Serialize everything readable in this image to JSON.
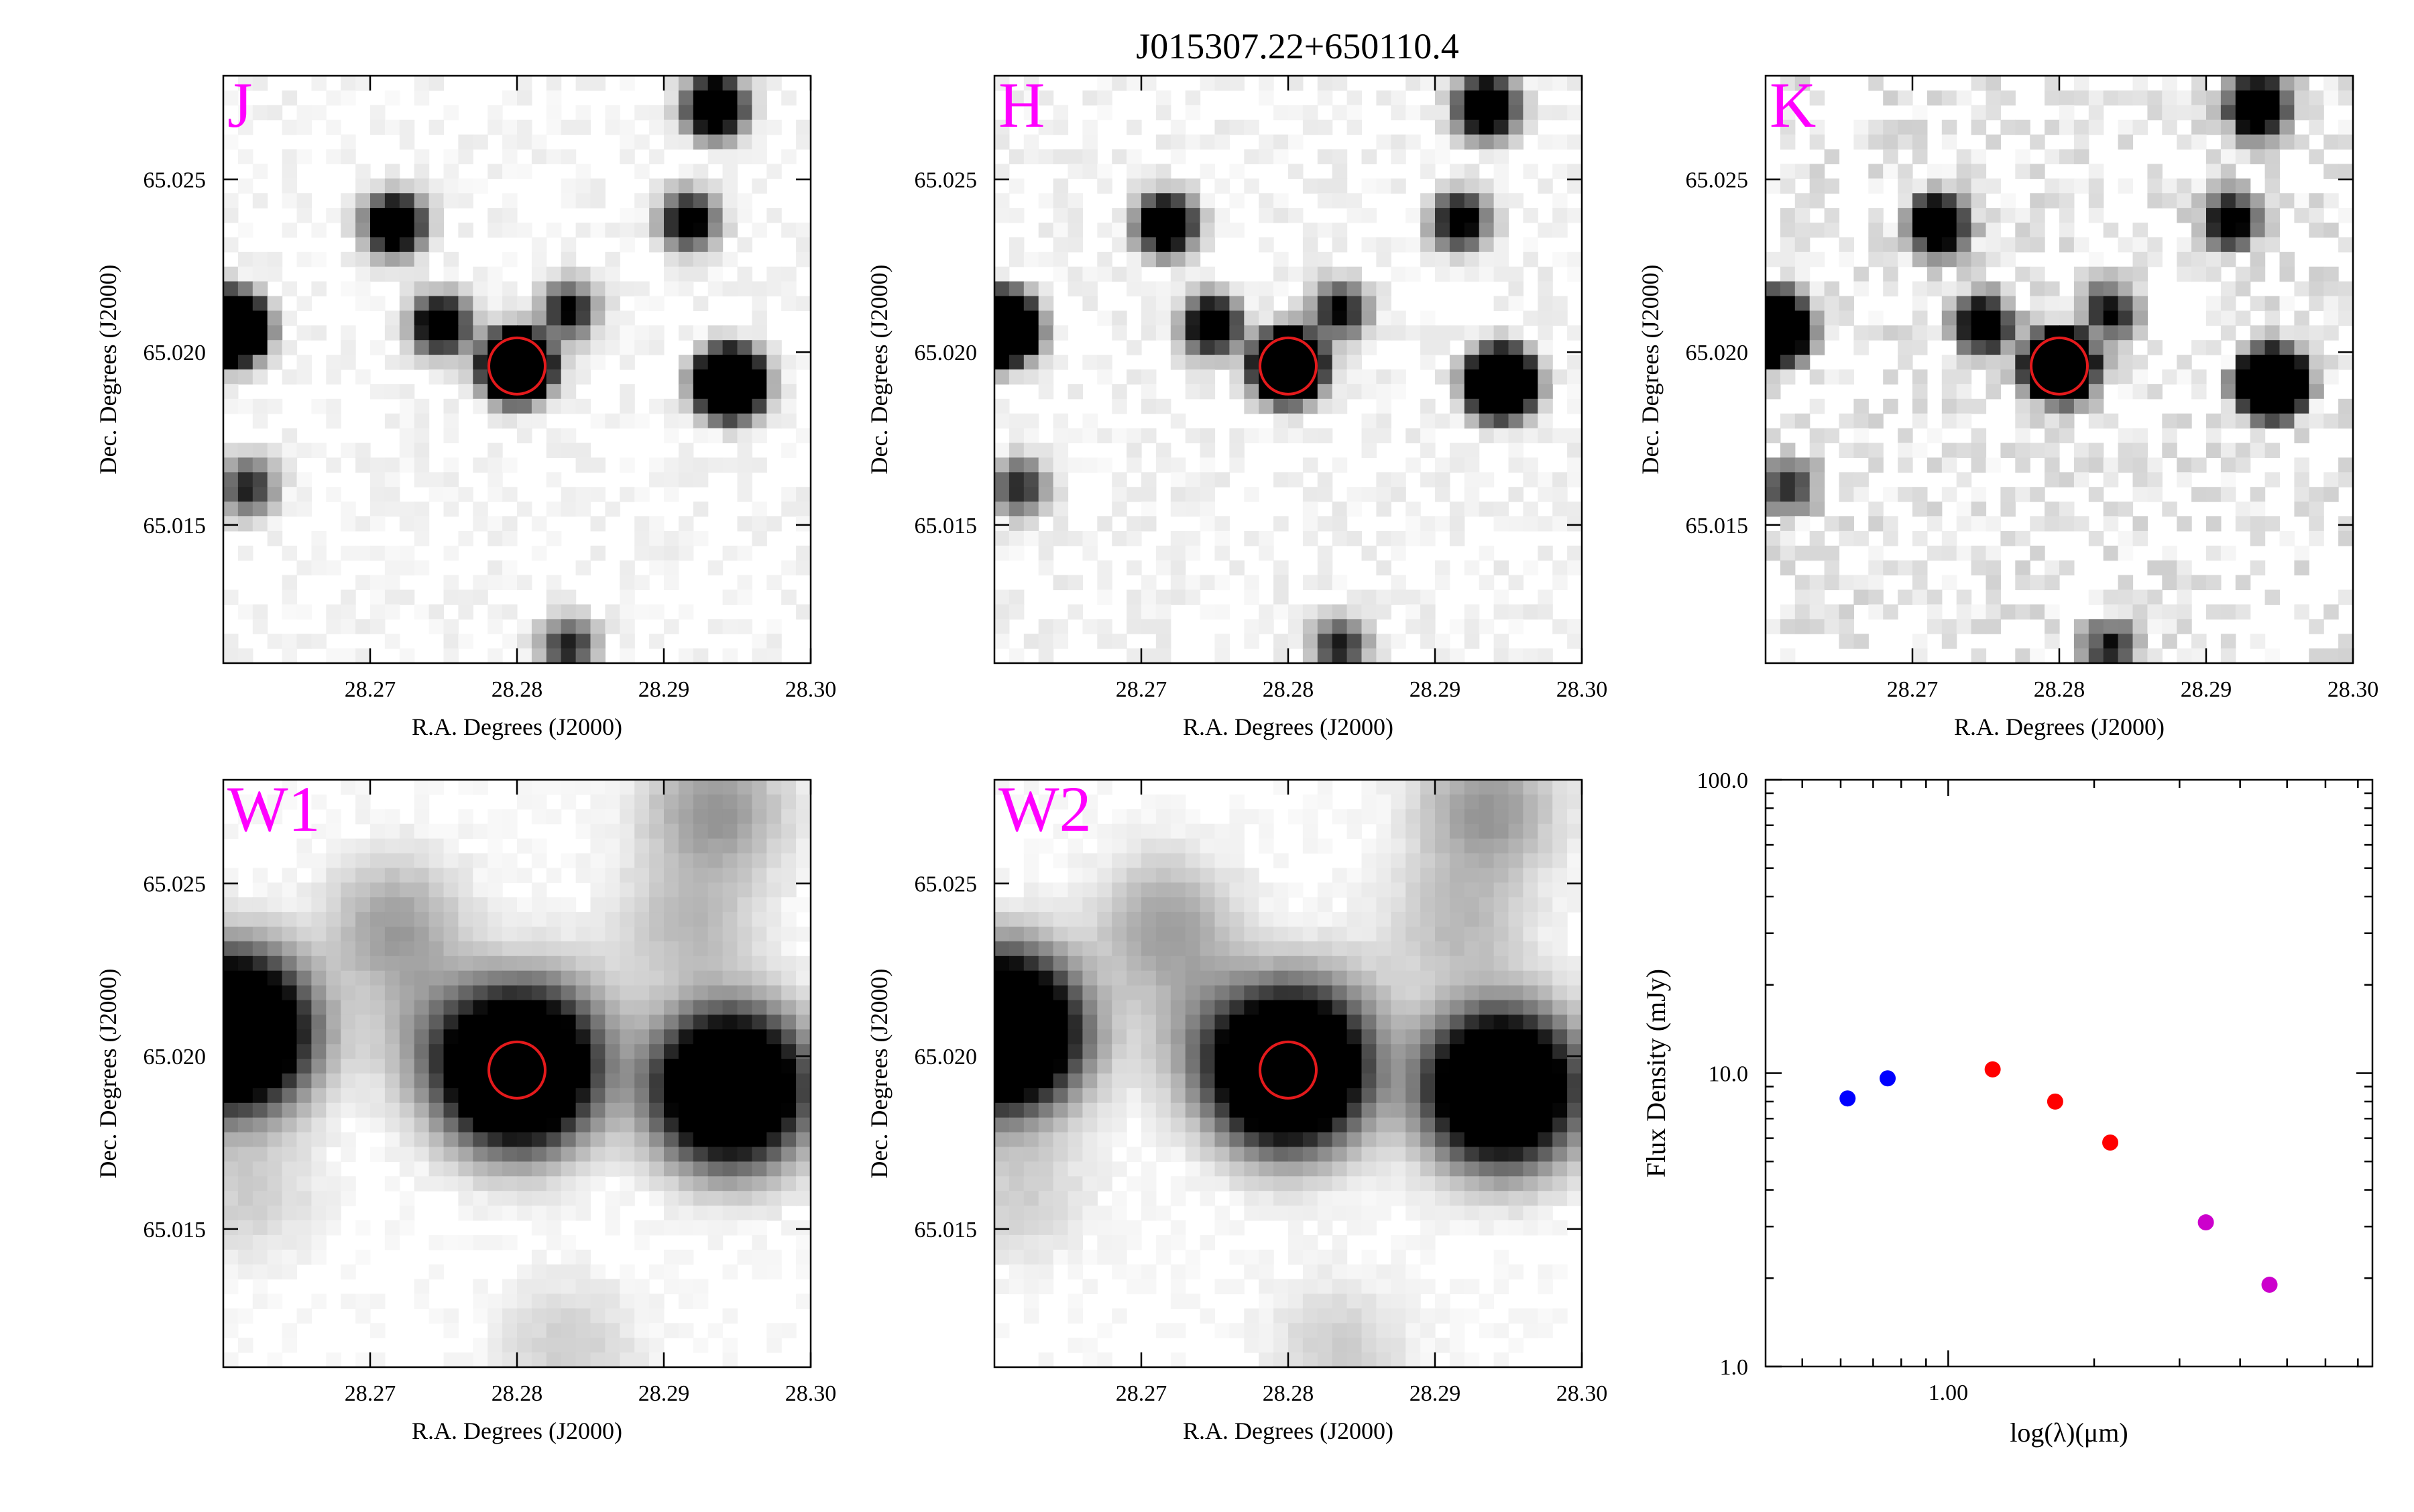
{
  "figure_title": "J015307.22+650110.4",
  "colors": {
    "band_label": "#ff00ff",
    "aperture": "#e41a1c",
    "optical_points": "#0000ff",
    "nir_points": "#ff0000",
    "wise_points": "#cc00cc"
  },
  "image_axes": {
    "xlabel": "R.A. Degrees (J2000)",
    "ylabel": "Dec. Degrees (J2000)",
    "xlim": [
      28.26,
      28.3
    ],
    "ylim": [
      65.011,
      65.028
    ],
    "xticks": [
      "28.27",
      "28.28",
      "28.29",
      "28.30"
    ],
    "yticks": [
      "65.015",
      "65.020",
      "65.025"
    ]
  },
  "panels": [
    {
      "band": "J",
      "psf": "sharp",
      "noise": 0.07
    },
    {
      "band": "H",
      "psf": "sharp",
      "noise": 0.09
    },
    {
      "band": "K",
      "psf": "sharp",
      "noise": 0.22
    },
    {
      "band": "W1",
      "psf": "broad",
      "noise": 0.03
    },
    {
      "band": "W2",
      "psf": "broad",
      "noise": 0.03
    }
  ],
  "target": {
    "ra": 28.28,
    "dec": 65.0196
  },
  "field_sources": [
    {
      "ra": 28.2605,
      "dec": 65.0207,
      "flux": 1.0
    },
    {
      "ra": 28.28,
      "dec": 65.0196,
      "flux": 0.95
    },
    {
      "ra": 28.2945,
      "dec": 65.0191,
      "flux": 0.85
    },
    {
      "ra": 28.2935,
      "dec": 65.0271,
      "flux": 0.28
    },
    {
      "ra": 28.2717,
      "dec": 65.0237,
      "flux": 0.25
    },
    {
      "ra": 28.2748,
      "dec": 65.0208,
      "flux": 0.2
    },
    {
      "ra": 28.2917,
      "dec": 65.0238,
      "flux": 0.16
    },
    {
      "ra": 28.2835,
      "dec": 65.0212,
      "flux": 0.12
    },
    {
      "ra": 28.2617,
      "dec": 65.0161,
      "flux": 0.1
    },
    {
      "ra": 28.2835,
      "dec": 65.0115,
      "flux": 0.1
    }
  ],
  "chart_data": {
    "type": "scatter",
    "xlabel": "log(λ)(μm)",
    "ylabel": "Flux Density (mJy)",
    "xscale": "log",
    "yscale": "log",
    "xlim": [
      0.42,
      7.5
    ],
    "ylim": [
      1.0,
      100.0
    ],
    "yticks": [
      "1.0",
      "10.0",
      "100.0"
    ],
    "xticks": [
      "1.00"
    ],
    "series": [
      {
        "color": "#0000ff",
        "x": [
          0.62,
          0.75
        ],
        "y": [
          8.2,
          9.6
        ]
      },
      {
        "color": "#ff0000",
        "x": [
          1.235,
          1.662,
          2.159
        ],
        "y": [
          10.3,
          8.0,
          5.8
        ]
      },
      {
        "color": "#cc00cc",
        "x": [
          3.4,
          4.6
        ],
        "y": [
          3.1,
          1.9
        ]
      }
    ]
  }
}
